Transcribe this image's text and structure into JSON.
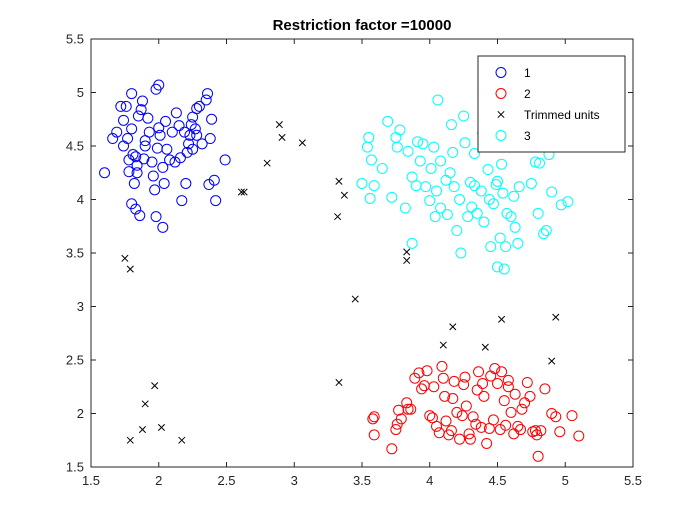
{
  "chart_data": {
    "type": "scatter",
    "title": "Restriction factor =10000",
    "xlim": [
      1.5,
      5.5
    ],
    "ylim": [
      1.5,
      5.5
    ],
    "xticks": [
      1.5,
      2,
      2.5,
      3,
      3.5,
      4,
      4.5,
      5,
      5.5
    ],
    "yticks": [
      1.5,
      2,
      2.5,
      3,
      3.5,
      4,
      4.5,
      5,
      5.5
    ],
    "xtick_labels": [
      "1.5",
      "2",
      "2.5",
      "3",
      "3.5",
      "4",
      "4.5",
      "5",
      "5.5"
    ],
    "ytick_labels": [
      "1.5",
      "2",
      "2.5",
      "3",
      "3.5",
      "4",
      "4.5",
      "5",
      "5.5"
    ],
    "grid": false,
    "legend_position": "top-right",
    "series": [
      {
        "name": "1",
        "marker": "circle",
        "color": "#0000ff",
        "points": [
          [
            1.6,
            4.25
          ],
          [
            1.66,
            4.57
          ],
          [
            1.69,
            4.63
          ],
          [
            1.72,
            4.87
          ],
          [
            1.74,
            4.74
          ],
          [
            1.76,
            4.87
          ],
          [
            1.77,
            4.57
          ],
          [
            1.78,
            4.37
          ],
          [
            1.78,
            4.26
          ],
          [
            1.8,
            4.99
          ],
          [
            1.8,
            4.66
          ],
          [
            1.81,
            4.42
          ],
          [
            1.83,
            4.4
          ],
          [
            1.84,
            4.32
          ],
          [
            1.84,
            4.25
          ],
          [
            1.82,
            4.15
          ],
          [
            1.8,
            3.96
          ],
          [
            1.83,
            3.91
          ],
          [
            1.86,
            3.85
          ],
          [
            1.85,
            4.78
          ],
          [
            1.87,
            4.84
          ],
          [
            1.88,
            4.92
          ],
          [
            1.9,
            4.55
          ],
          [
            1.9,
            4.5
          ],
          [
            1.92,
            4.76
          ],
          [
            1.93,
            4.63
          ],
          [
            1.95,
            4.35
          ],
          [
            1.96,
            4.22
          ],
          [
            1.97,
            4.09
          ],
          [
            1.98,
            3.84
          ],
          [
            1.98,
            5.03
          ],
          [
            2.0,
            5.07
          ],
          [
            2.0,
            4.67
          ],
          [
            2.01,
            4.6
          ],
          [
            2.03,
            4.3
          ],
          [
            2.04,
            4.15
          ],
          [
            2.03,
            3.74
          ],
          [
            2.05,
            4.73
          ],
          [
            2.06,
            4.47
          ],
          [
            2.08,
            4.37
          ],
          [
            2.1,
            4.63
          ],
          [
            2.12,
            4.35
          ],
          [
            2.13,
            4.81
          ],
          [
            2.15,
            4.69
          ],
          [
            2.16,
            4.39
          ],
          [
            2.17,
            3.99
          ],
          [
            2.2,
            4.15
          ],
          [
            2.21,
            4.44
          ],
          [
            2.22,
            4.52
          ],
          [
            2.23,
            4.6
          ],
          [
            2.24,
            4.7
          ],
          [
            2.25,
            4.77
          ],
          [
            2.25,
            4.47
          ],
          [
            2.28,
            4.85
          ],
          [
            2.28,
            4.6
          ],
          [
            2.3,
            4.87
          ],
          [
            2.32,
            4.52
          ],
          [
            2.35,
            4.93
          ],
          [
            2.36,
            4.99
          ],
          [
            2.37,
            4.14
          ],
          [
            2.38,
            4.57
          ],
          [
            2.39,
            4.75
          ],
          [
            2.41,
            4.18
          ],
          [
            2.42,
            3.99
          ],
          [
            2.49,
            4.37
          ],
          [
            2.27,
            4.66
          ],
          [
            1.99,
            4.48
          ],
          [
            1.74,
            4.5
          ],
          [
            1.89,
            4.38
          ],
          [
            2.19,
            4.63
          ]
        ]
      },
      {
        "name": "2",
        "marker": "circle",
        "color": "#ff0000",
        "points": [
          [
            3.58,
            1.95
          ],
          [
            3.59,
            1.97
          ],
          [
            3.59,
            1.8
          ],
          [
            3.72,
            1.67
          ],
          [
            3.75,
            1.85
          ],
          [
            3.76,
            1.9
          ],
          [
            3.77,
            2.03
          ],
          [
            3.79,
            1.95
          ],
          [
            3.83,
            2.1
          ],
          [
            3.84,
            2.04
          ],
          [
            3.86,
            2.04
          ],
          [
            3.89,
            2.33
          ],
          [
            3.92,
            2.38
          ],
          [
            3.94,
            2.23
          ],
          [
            3.96,
            2.26
          ],
          [
            3.98,
            2.4
          ],
          [
            4.0,
            1.98
          ],
          [
            4.02,
            1.96
          ],
          [
            4.03,
            2.25
          ],
          [
            4.05,
            1.88
          ],
          [
            4.07,
            1.82
          ],
          [
            4.09,
            2.44
          ],
          [
            4.1,
            2.33
          ],
          [
            4.11,
            2.16
          ],
          [
            4.12,
            1.93
          ],
          [
            4.14,
            1.8
          ],
          [
            4.16,
            1.84
          ],
          [
            4.17,
            2.14
          ],
          [
            4.18,
            2.3
          ],
          [
            4.2,
            2.01
          ],
          [
            4.22,
            1.76
          ],
          [
            4.24,
            1.98
          ],
          [
            4.25,
            2.27
          ],
          [
            4.26,
            2.34
          ],
          [
            4.27,
            2.07
          ],
          [
            4.29,
            1.81
          ],
          [
            4.3,
            1.76
          ],
          [
            4.32,
            1.97
          ],
          [
            4.34,
            1.9
          ],
          [
            4.35,
            2.22
          ],
          [
            4.36,
            2.39
          ],
          [
            4.38,
            1.87
          ],
          [
            4.39,
            2.28
          ],
          [
            4.4,
            2.16
          ],
          [
            4.42,
            1.72
          ],
          [
            4.44,
            1.86
          ],
          [
            4.45,
            2.35
          ],
          [
            4.47,
            1.94
          ],
          [
            4.48,
            2.42
          ],
          [
            4.5,
            2.28
          ],
          [
            4.52,
            1.85
          ],
          [
            4.53,
            2.39
          ],
          [
            4.55,
            2.12
          ],
          [
            4.56,
            1.89
          ],
          [
            4.58,
            2.31
          ],
          [
            4.6,
            2.01
          ],
          [
            4.62,
            1.81
          ],
          [
            4.63,
            2.18
          ],
          [
            4.65,
            1.88
          ],
          [
            4.67,
            1.85
          ],
          [
            4.68,
            2.04
          ],
          [
            4.7,
            2.1
          ],
          [
            4.72,
            2.29
          ],
          [
            4.74,
            2.16
          ],
          [
            4.76,
            1.83
          ],
          [
            4.78,
            1.84
          ],
          [
            4.79,
            1.8
          ],
          [
            4.8,
            1.6
          ],
          [
            4.82,
            1.84
          ],
          [
            4.85,
            2.23
          ],
          [
            4.9,
            2.0
          ],
          [
            4.93,
            1.97
          ],
          [
            4.96,
            1.83
          ],
          [
            5.05,
            1.98
          ],
          [
            5.1,
            1.79
          ],
          [
            4.58,
            2.25
          ]
        ]
      },
      {
        "name": "Trimmed units",
        "marker": "x",
        "color": "#000000",
        "points": [
          [
            1.75,
            3.45
          ],
          [
            1.79,
            3.35
          ],
          [
            1.79,
            1.75
          ],
          [
            1.88,
            1.85
          ],
          [
            1.9,
            2.09
          ],
          [
            1.97,
            2.26
          ],
          [
            2.02,
            1.87
          ],
          [
            2.17,
            1.75
          ],
          [
            2.61,
            4.07
          ],
          [
            2.63,
            4.07
          ],
          [
            2.8,
            4.34
          ],
          [
            2.89,
            4.7
          ],
          [
            2.91,
            4.58
          ],
          [
            3.06,
            4.53
          ],
          [
            3.32,
            3.84
          ],
          [
            3.33,
            4.17
          ],
          [
            3.33,
            2.29
          ],
          [
            3.37,
            4.04
          ],
          [
            3.45,
            3.07
          ],
          [
            3.83,
            3.51
          ],
          [
            3.83,
            3.43
          ],
          [
            4.1,
            2.64
          ],
          [
            4.17,
            2.81
          ],
          [
            4.41,
            2.62
          ],
          [
            4.53,
            2.88
          ],
          [
            4.9,
            2.49
          ],
          [
            4.93,
            2.9
          ]
        ]
      },
      {
        "name": "3",
        "marker": "circle",
        "color": "#00ffff",
        "points": [
          [
            3.5,
            4.15
          ],
          [
            3.54,
            4.49
          ],
          [
            3.55,
            4.58
          ],
          [
            3.56,
            4.01
          ],
          [
            3.57,
            4.37
          ],
          [
            3.59,
            4.13
          ],
          [
            3.65,
            4.29
          ],
          [
            3.69,
            4.73
          ],
          [
            3.72,
            4.02
          ],
          [
            3.75,
            4.58
          ],
          [
            3.76,
            4.49
          ],
          [
            3.78,
            4.65
          ],
          [
            3.82,
            3.92
          ],
          [
            3.84,
            4.45
          ],
          [
            3.87,
            4.21
          ],
          [
            3.87,
            3.59
          ],
          [
            3.9,
            4.13
          ],
          [
            3.91,
            4.54
          ],
          [
            3.93,
            4.36
          ],
          [
            3.95,
            4.52
          ],
          [
            3.97,
            4.12
          ],
          [
            4.0,
            3.99
          ],
          [
            4.01,
            4.29
          ],
          [
            4.03,
            4.49
          ],
          [
            4.04,
            3.84
          ],
          [
            4.05,
            4.08
          ],
          [
            4.06,
            4.93
          ],
          [
            4.08,
            4.36
          ],
          [
            4.08,
            3.92
          ],
          [
            4.12,
            4.18
          ],
          [
            4.13,
            3.86
          ],
          [
            4.15,
            4.25
          ],
          [
            4.16,
            4.7
          ],
          [
            4.17,
            4.44
          ],
          [
            4.18,
            4.12
          ],
          [
            4.2,
            3.71
          ],
          [
            4.22,
            4.0
          ],
          [
            4.23,
            3.5
          ],
          [
            4.25,
            4.78
          ],
          [
            4.26,
            4.53
          ],
          [
            4.28,
            3.84
          ],
          [
            4.3,
            4.16
          ],
          [
            4.31,
            3.93
          ],
          [
            4.33,
            4.43
          ],
          [
            4.35,
            3.87
          ],
          [
            4.38,
            4.08
          ],
          [
            4.39,
            4.62
          ],
          [
            4.4,
            3.79
          ],
          [
            4.43,
            4.28
          ],
          [
            4.44,
            4.0
          ],
          [
            4.45,
            3.56
          ],
          [
            4.47,
            3.96
          ],
          [
            4.49,
            4.14
          ],
          [
            4.5,
            3.37
          ],
          [
            4.52,
            3.64
          ],
          [
            4.53,
            4.33
          ],
          [
            4.54,
            4.06
          ],
          [
            4.55,
            3.35
          ],
          [
            4.57,
            3.87
          ],
          [
            4.6,
            3.84
          ],
          [
            4.62,
            4.03
          ],
          [
            4.63,
            3.74
          ],
          [
            4.65,
            3.59
          ],
          [
            4.66,
            4.12
          ],
          [
            4.7,
            4.5
          ],
          [
            4.75,
            4.15
          ],
          [
            4.78,
            4.35
          ],
          [
            4.8,
            3.87
          ],
          [
            4.81,
            4.34
          ],
          [
            4.84,
            3.68
          ],
          [
            4.86,
            3.71
          ],
          [
            4.88,
            4.42
          ],
          [
            4.9,
            4.07
          ],
          [
            4.97,
            3.95
          ],
          [
            5.02,
            3.98
          ],
          [
            4.56,
            3.56
          ],
          [
            4.33,
            4.13
          ],
          [
            4.5,
            4.17
          ]
        ]
      }
    ]
  }
}
